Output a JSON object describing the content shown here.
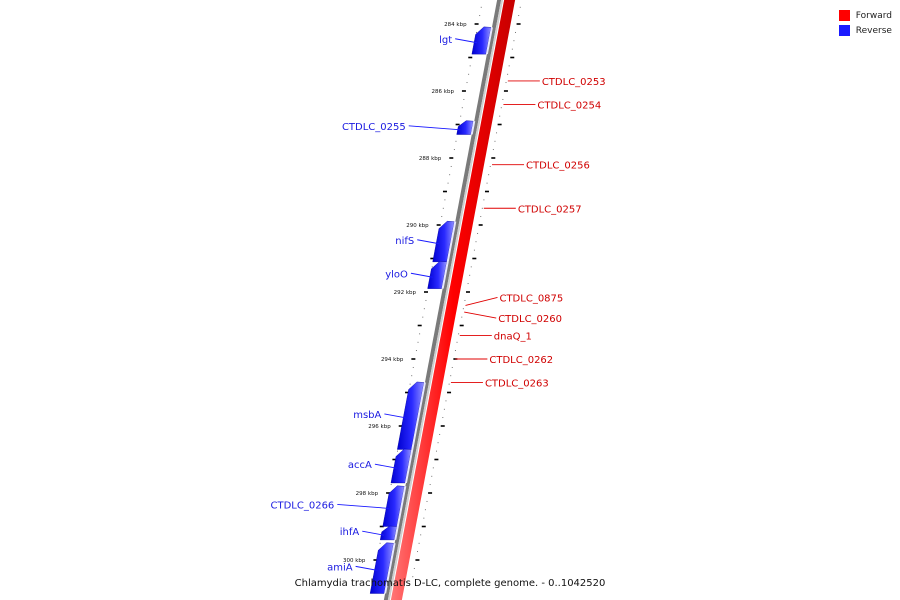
{
  "legend": {
    "forward_label": "Forward",
    "reverse_label": "Reverse",
    "forward_color": "#ff0000",
    "reverse_color": "#1a1aff"
  },
  "caption": "Chlamydia trachomatis D-LC, complete genome. - 0..1042520",
  "genome": {
    "start_kbp": 283,
    "end_kbp": 301,
    "kbp_labels": [
      "284 kbp",
      "286 kbp",
      "288 kbp",
      "290 kbp",
      "292 kbp",
      "294 kbp",
      "296 kbp",
      "298 kbp",
      "300 kbp"
    ]
  },
  "forward_genes": [
    {
      "name": "CTDLC_0253",
      "pos_kbp": 285.7
    },
    {
      "name": "CTDLC_0254",
      "pos_kbp": 286.4
    },
    {
      "name": "CTDLC_0256",
      "pos_kbp": 288.2
    },
    {
      "name": "CTDLC_0257",
      "pos_kbp": 289.5
    },
    {
      "name": "CTDLC_0875",
      "pos_kbp": 292.4
    },
    {
      "name": "CTDLC_0260",
      "pos_kbp": 292.6
    },
    {
      "name": "dnaQ_1",
      "pos_kbp": 293.3
    },
    {
      "name": "CTDLC_0262",
      "pos_kbp": 294.0
    },
    {
      "name": "CTDLC_0263",
      "pos_kbp": 294.7
    }
  ],
  "reverse_genes": [
    {
      "name": "lgt",
      "start_kbp": 284.1,
      "end_kbp": 284.9
    },
    {
      "name": "CTDLC_0255",
      "start_kbp": 286.9,
      "end_kbp": 287.3
    },
    {
      "name": "nifS",
      "start_kbp": 289.9,
      "end_kbp": 291.1
    },
    {
      "name": "yloO",
      "start_kbp": 291.1,
      "end_kbp": 291.9
    },
    {
      "name": "msbA",
      "start_kbp": 294.7,
      "end_kbp": 296.7
    },
    {
      "name": "accA",
      "start_kbp": 296.7,
      "end_kbp": 297.7
    },
    {
      "name": "CTDLC_0266",
      "start_kbp": 297.8,
      "end_kbp": 299.0
    },
    {
      "name": "ihfA",
      "start_kbp": 299.0,
      "end_kbp": 299.4
    },
    {
      "name": "amiA",
      "start_kbp": 299.5,
      "end_kbp": 301.0
    }
  ]
}
